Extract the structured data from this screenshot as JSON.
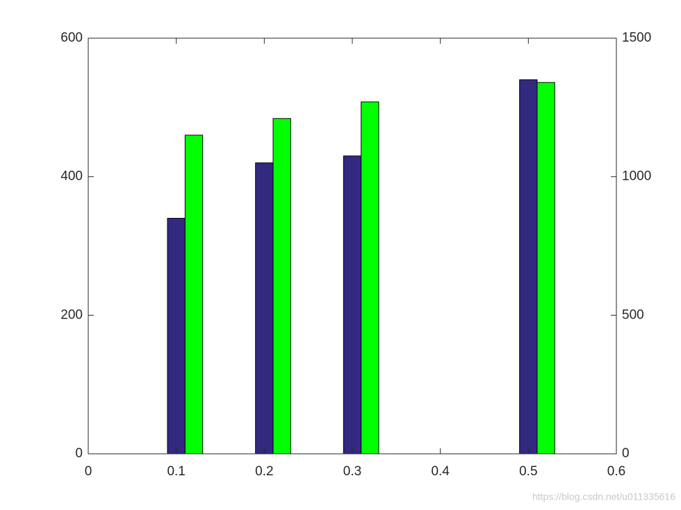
{
  "chart_data": {
    "type": "bar",
    "x": [
      0.1,
      0.2,
      0.3,
      0.5
    ],
    "xlim": [
      0,
      0.6
    ],
    "xticks": [
      0,
      0.1,
      0.2,
      0.3,
      0.4,
      0.5,
      0.6
    ],
    "ylim": [
      0,
      600
    ],
    "yticks": [
      0,
      200,
      400,
      600
    ],
    "y2lim": [
      0,
      1500
    ],
    "y2ticks": [
      0,
      500,
      1000,
      1500
    ],
    "series": [
      {
        "color": "#322a80",
        "values": [
          340,
          420,
          430,
          540
        ]
      },
      {
        "color": "#00ff00",
        "axis": "y2",
        "values": [
          1150,
          1210,
          1270,
          1340
        ]
      }
    ],
    "watermark": "https://blog.csdn.net/u011335616"
  }
}
